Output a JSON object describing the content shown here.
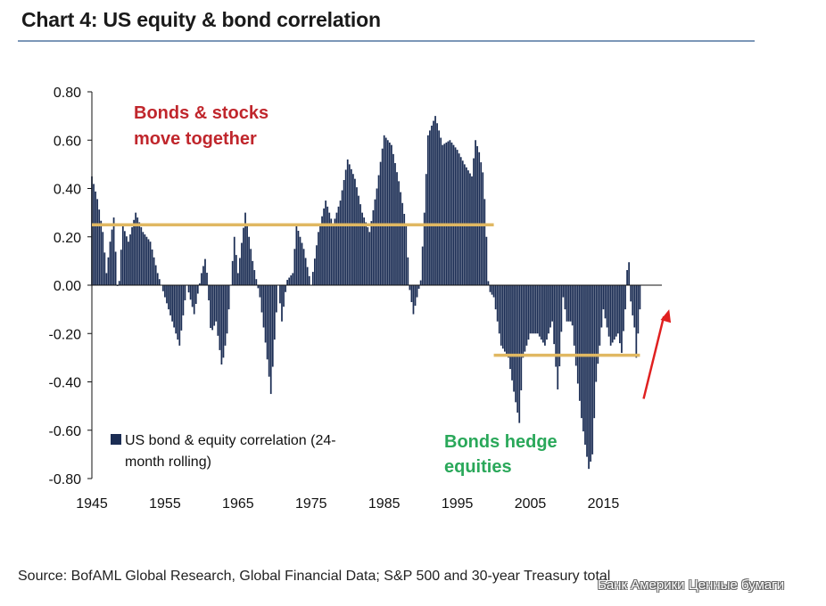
{
  "title": "Chart 4: US equity & bond correlation",
  "source": "Source: BofAML Global Research, Global Financial Data; S&P 500 and 30-year Treasury total",
  "watermark": "Банк Америки Ценные бумаги",
  "colors": {
    "bars": "#1b2d54",
    "reference_line": "#e0b862",
    "arrow": "#e02020",
    "red_text": "#c0262c",
    "green_text": "#2aa85a",
    "rule": "#7c97b8"
  },
  "chart_data": {
    "type": "bar",
    "title": "Chart 4: US equity & bond correlation",
    "xlabel": "",
    "ylabel": "",
    "xlim": [
      1945,
      2023
    ],
    "ylim": [
      -0.8,
      0.8
    ],
    "x_ticks": [
      "1945",
      "1955",
      "1965",
      "1975",
      "1985",
      "1995",
      "2005",
      "2015"
    ],
    "y_ticks": [
      "0.80",
      "0.60",
      "0.40",
      "0.20",
      "0.00",
      "-0.20",
      "-0.40",
      "-0.60",
      "-0.80"
    ],
    "series": [
      {
        "name": "US bond & equity correlation (24-month rolling)",
        "anchors": [
          [
            1945.0,
            0.45
          ],
          [
            1945.8,
            0.35
          ],
          [
            1946.5,
            0.22
          ],
          [
            1947.0,
            0.05
          ],
          [
            1947.5,
            0.18
          ],
          [
            1948.0,
            0.28
          ],
          [
            1948.6,
            -0.06
          ],
          [
            1949.2,
            0.25
          ],
          [
            1950.0,
            0.18
          ],
          [
            1951.0,
            0.3
          ],
          [
            1952.0,
            0.22
          ],
          [
            1953.0,
            0.18
          ],
          [
            1954.0,
            0.05
          ],
          [
            1955.0,
            -0.05
          ],
          [
            1956.0,
            -0.15
          ],
          [
            1957.0,
            -0.25
          ],
          [
            1958.0,
            0.0
          ],
          [
            1959.0,
            -0.12
          ],
          [
            1960.0,
            0.05
          ],
          [
            1960.6,
            0.12
          ],
          [
            1961.3,
            -0.2
          ],
          [
            1962.0,
            -0.15
          ],
          [
            1962.8,
            -0.34
          ],
          [
            1963.5,
            -0.2
          ],
          [
            1964.5,
            0.2
          ],
          [
            1965.0,
            0.05
          ],
          [
            1966.0,
            0.3
          ],
          [
            1967.0,
            0.1
          ],
          [
            1968.0,
            -0.05
          ],
          [
            1968.8,
            -0.25
          ],
          [
            1969.5,
            -0.45
          ],
          [
            1970.5,
            0.0
          ],
          [
            1971.0,
            -0.15
          ],
          [
            1971.7,
            0.02
          ],
          [
            1972.5,
            0.05
          ],
          [
            1973.0,
            0.25
          ],
          [
            1974.0,
            0.15
          ],
          [
            1975.0,
            0.0
          ],
          [
            1976.0,
            0.22
          ],
          [
            1977.0,
            0.35
          ],
          [
            1978.0,
            0.25
          ],
          [
            1979.0,
            0.35
          ],
          [
            1980.0,
            0.52
          ],
          [
            1981.0,
            0.44
          ],
          [
            1982.0,
            0.3
          ],
          [
            1983.0,
            0.22
          ],
          [
            1984.0,
            0.4
          ],
          [
            1985.0,
            0.62
          ],
          [
            1986.0,
            0.58
          ],
          [
            1987.0,
            0.43
          ],
          [
            1988.0,
            0.25
          ],
          [
            1988.5,
            -0.02
          ],
          [
            1989.0,
            -0.12
          ],
          [
            1989.5,
            -0.05
          ],
          [
            1990.0,
            0.02
          ],
          [
            1990.5,
            0.3
          ],
          [
            1991.0,
            0.62
          ],
          [
            1992.0,
            0.7
          ],
          [
            1993.0,
            0.58
          ],
          [
            1994.0,
            0.6
          ],
          [
            1995.0,
            0.56
          ],
          [
            1996.0,
            0.5
          ],
          [
            1997.0,
            0.45
          ],
          [
            1997.5,
            0.6
          ],
          [
            1998.0,
            0.55
          ],
          [
            1998.6,
            0.45
          ],
          [
            1999.0,
            0.2
          ],
          [
            1999.3,
            -0.02
          ],
          [
            2000.0,
            -0.05
          ],
          [
            2001.0,
            -0.25
          ],
          [
            2002.0,
            -0.3
          ],
          [
            2002.8,
            -0.45
          ],
          [
            2003.5,
            -0.57
          ],
          [
            2004.0,
            -0.3
          ],
          [
            2005.0,
            -0.2
          ],
          [
            2006.0,
            -0.2
          ],
          [
            2007.0,
            -0.25
          ],
          [
            2008.0,
            -0.15
          ],
          [
            2008.8,
            -0.45
          ],
          [
            2009.5,
            -0.05
          ],
          [
            2010.0,
            -0.15
          ],
          [
            2010.7,
            -0.15
          ],
          [
            2011.3,
            -0.35
          ],
          [
            2012.0,
            -0.55
          ],
          [
            2012.5,
            -0.66
          ],
          [
            2013.0,
            -0.76
          ],
          [
            2013.5,
            -0.7
          ],
          [
            2014.0,
            -0.4
          ],
          [
            2015.0,
            -0.1
          ],
          [
            2016.0,
            -0.25
          ],
          [
            2017.0,
            -0.2
          ],
          [
            2017.5,
            -0.28
          ],
          [
            2018.0,
            -0.1
          ],
          [
            2018.4,
            0.16
          ],
          [
            2018.8,
            -0.1
          ],
          [
            2019.2,
            -0.15
          ],
          [
            2019.5,
            -0.3
          ],
          [
            2020.0,
            -0.1
          ]
        ]
      }
    ],
    "reference_lines": [
      {
        "x_start": 1945,
        "x_end": 2000,
        "y": 0.25
      },
      {
        "x_start": 2000,
        "x_end": 2020,
        "y": -0.29
      }
    ],
    "legend": {
      "position": "bottom-left",
      "label": "US bond & equity correlation (24-month rolling)",
      "line1": "US bond & equity correlation (24-",
      "line2": "month rolling)"
    },
    "annotations": [
      {
        "line1": "Bonds & stocks",
        "line2": "move together",
        "color": "red"
      },
      {
        "line1": "Bonds hedge",
        "line2": "equities",
        "color": "green"
      }
    ],
    "arrow": {
      "from": [
        2020.5,
        -0.47
      ],
      "to": [
        2024,
        -0.1
      ]
    }
  }
}
